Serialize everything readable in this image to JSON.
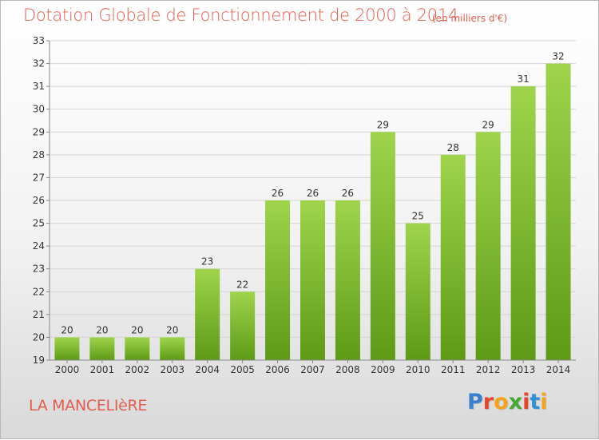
{
  "header": {
    "title": "Dotation Globale de Fonctionnement de 2000 à 2014",
    "subtitle": "(en milliers d'€)"
  },
  "footer": {
    "commune": "LA MANCELIèRE",
    "logo": {
      "letters": [
        "P",
        "r",
        "o",
        "x",
        "i",
        "t",
        "i"
      ],
      "colors": [
        "#3a7fd1",
        "#e8462c",
        "#f2a51c",
        "#44a832",
        "#e8462c",
        "#2f8fd8",
        "#f2a51c"
      ]
    }
  },
  "colors": {
    "bar_top": "#9fd44c",
    "bar_bottom": "#5e9a16",
    "grid": "#d4d4d4",
    "axis": "#888888",
    "title": "#e35d4f"
  },
  "chart_data": {
    "type": "bar",
    "categories": [
      "2000",
      "2001",
      "2002",
      "2003",
      "2004",
      "2005",
      "2006",
      "2007",
      "2008",
      "2009",
      "2010",
      "2011",
      "2012",
      "2013",
      "2014"
    ],
    "values": [
      20,
      20,
      20,
      20,
      23,
      22,
      26,
      26,
      26,
      29,
      25,
      28,
      29,
      31,
      32
    ],
    "ylim": [
      19,
      33
    ],
    "yticks": [
      19,
      20,
      21,
      22,
      23,
      24,
      25,
      26,
      27,
      28,
      29,
      30,
      31,
      32,
      33
    ],
    "grid": true,
    "data_labels": true
  }
}
